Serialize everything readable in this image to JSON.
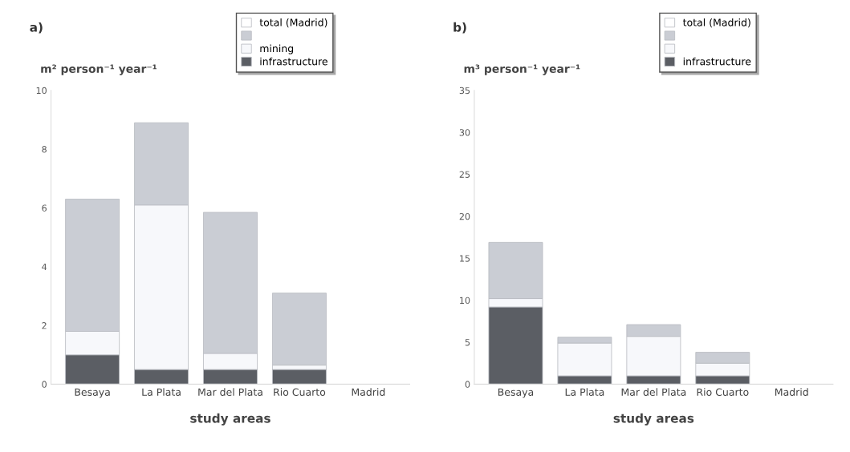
{
  "chart_data": [
    {
      "type": "bar",
      "title": "a)",
      "ylabel": "m² person⁻¹ year⁻¹",
      "xlabel": "study areas",
      "categories": [
        "Besaya",
        "La Plata",
        "Mar del Plata",
        "Rio Cuarto",
        "Madrid"
      ],
      "stacked": true,
      "ylim": [
        0,
        10
      ],
      "yticks": [
        0,
        2,
        4,
        6,
        8,
        10
      ],
      "legend": "top right",
      "grid": false,
      "series": [
        {
          "name": "infrastructure",
          "color": "#5b5e64",
          "values": [
            1.0,
            0.5,
            0.5,
            0.5,
            null
          ]
        },
        {
          "name": "mining",
          "color": "#f7f8fb",
          "values": [
            0.8,
            5.6,
            0.55,
            0.15,
            null
          ]
        },
        {
          "color": "#cacdd4",
          "values": [
            4.5,
            2.8,
            4.8,
            2.45,
            null
          ]
        },
        {
          "name": "total (Madrid)",
          "color": "#ffffff",
          "values": [
            null,
            null,
            null,
            null,
            0
          ]
        }
      ]
    },
    {
      "type": "bar",
      "title": "b)",
      "ylabel": "m³ person⁻¹ year⁻¹",
      "xlabel": "study areas",
      "categories": [
        "Besaya",
        "La Plata",
        "Mar del Plata",
        "Rio Cuarto",
        "Madrid"
      ],
      "stacked": true,
      "ylim": [
        0,
        35
      ],
      "yticks": [
        0,
        5,
        10,
        15,
        20,
        25,
        30,
        35
      ],
      "legend": "top right",
      "grid": false,
      "series": [
        {
          "name": "infrastructure",
          "color": "#5b5e64",
          "values": [
            9.2,
            1.0,
            1.0,
            1.0,
            null
          ]
        },
        {
          "color": "#f7f8fb",
          "values": [
            1.0,
            3.9,
            4.7,
            1.5,
            null
          ]
        },
        {
          "color": "#cacdd4",
          "values": [
            6.7,
            0.7,
            1.4,
            1.3,
            null
          ]
        },
        {
          "name": "total (Madrid)",
          "color": "#ffffff",
          "values": [
            null,
            null,
            null,
            null,
            0
          ]
        }
      ]
    }
  ]
}
